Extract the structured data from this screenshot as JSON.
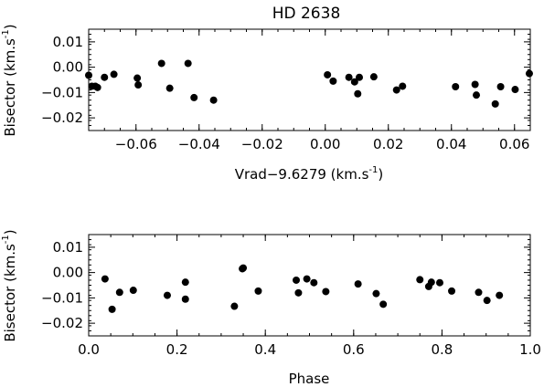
{
  "title": "HD 2638",
  "colors": {
    "ink": "#000000",
    "background": "#ffffff"
  },
  "chart_data": [
    {
      "type": "scatter",
      "title": "HD 2638",
      "xlabel": "Vrad−9.6279 (km.s",
      "xlabel_sup": "-1",
      "xlabel_tail": ")",
      "ylabel": "Bisector (km.s",
      "ylabel_sup": "-1",
      "ylabel_tail": ")",
      "xlim": [
        -0.075,
        0.065
      ],
      "ylim": [
        -0.025,
        0.015
      ],
      "xticks": [
        -0.06,
        -0.04,
        -0.02,
        0.0,
        0.02,
        0.04,
        0.06
      ],
      "xtick_labels": [
        "−0.06",
        "−0.04",
        "−0.02",
        "0.00",
        "0.02",
        "0.04",
        "0.06"
      ],
      "yticks": [
        0.01,
        0.0,
        -0.01,
        -0.02
      ],
      "ytick_labels": [
        "0.01",
        "0.00",
        "−0.01",
        "−0.02"
      ],
      "grid": false,
      "series": [
        {
          "x": [
            -0.0751,
            -0.074,
            -0.0729,
            -0.0722,
            -0.07,
            -0.067,
            -0.0596,
            -0.0593,
            -0.0519,
            -0.0493,
            -0.0435,
            -0.0416,
            -0.0354,
            0.0007,
            0.0025,
            0.0075,
            0.0093,
            0.0103,
            0.0108,
            0.0154,
            0.0226,
            0.0245,
            0.0413,
            0.0475,
            0.0479,
            0.0539,
            0.0556,
            0.0602,
            0.0647
          ],
          "y": [
            -0.0032,
            -0.0075,
            -0.0075,
            -0.008,
            -0.004,
            -0.0028,
            -0.0043,
            -0.007,
            0.0015,
            -0.0083,
            0.0015,
            -0.012,
            -0.013,
            -0.003,
            -0.0055,
            -0.004,
            -0.0058,
            -0.0105,
            -0.004,
            -0.0038,
            -0.009,
            -0.0075,
            -0.0077,
            -0.0068,
            -0.011,
            -0.0145,
            -0.0077,
            -0.0088,
            -0.0025
          ]
        }
      ]
    },
    {
      "type": "scatter",
      "xlabel": "Phase",
      "ylabel": "Bisector (km.s",
      "ylabel_sup": "-1",
      "ylabel_tail": ")",
      "xlim": [
        0.0,
        1.0
      ],
      "ylim": [
        -0.025,
        0.015
      ],
      "xticks": [
        0.0,
        0.2,
        0.4,
        0.6,
        0.8,
        1.0
      ],
      "xtick_labels": [
        "0.0",
        "0.2",
        "0.4",
        "0.6",
        "0.8",
        "1.0"
      ],
      "yticks": [
        0.01,
        0.0,
        -0.01,
        -0.02
      ],
      "ytick_labels": [
        "0.01",
        "0.00",
        "−0.01",
        "−0.02"
      ],
      "grid": false,
      "series": [
        {
          "x": [
            0.037,
            0.053,
            0.07,
            0.101,
            0.178,
            0.219,
            0.219,
            0.33,
            0.348,
            0.35,
            0.384,
            0.47,
            0.475,
            0.494,
            0.51,
            0.537,
            0.61,
            0.651,
            0.667,
            0.75,
            0.77,
            0.776,
            0.795,
            0.822,
            0.883,
            0.902,
            0.93
          ],
          "y": [
            -0.0025,
            -0.0145,
            -0.0078,
            -0.007,
            -0.009,
            -0.0038,
            -0.0105,
            -0.0133,
            0.0015,
            0.0018,
            -0.0073,
            -0.003,
            -0.008,
            -0.0025,
            -0.004,
            -0.0075,
            -0.0045,
            -0.0083,
            -0.0125,
            -0.0028,
            -0.0055,
            -0.0038,
            -0.004,
            -0.0073,
            -0.0078,
            -0.011,
            -0.009
          ]
        }
      ]
    }
  ]
}
